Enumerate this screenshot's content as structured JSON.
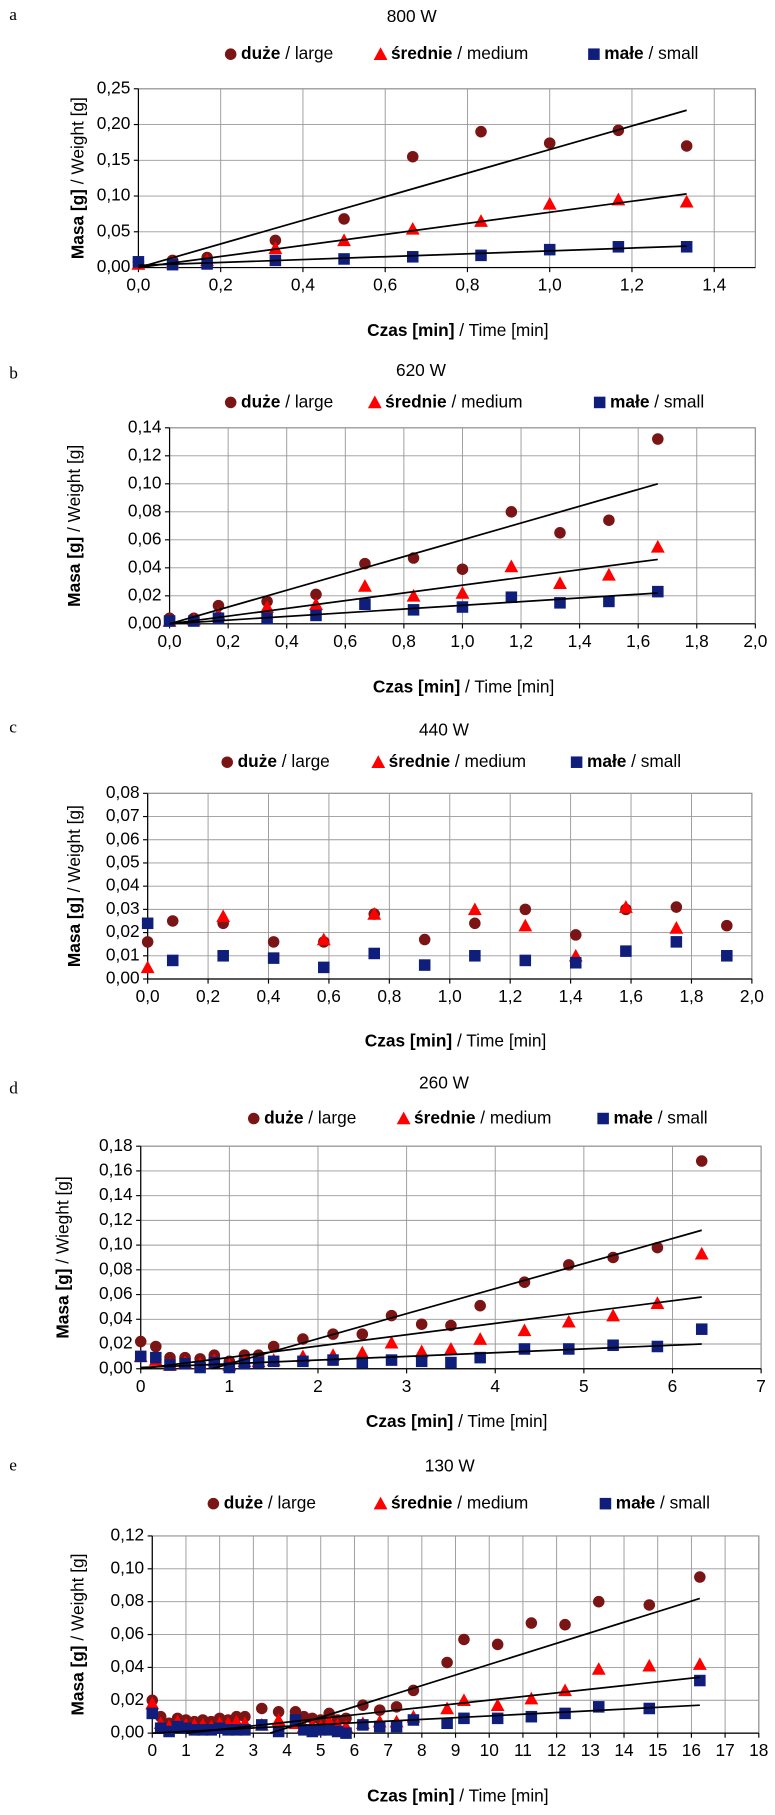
{
  "chart_data": [
    {
      "type": "scatter",
      "label": "a",
      "title": "800 W",
      "x_label": "Czas [min] / Time [min]",
      "y_label": "Masa [g] / Weight [g]",
      "xlim": [
        0,
        1.5
      ],
      "xticks": [
        {
          "value": 0,
          "label": "0,0"
        },
        {
          "value": 0.2,
          "label": "0,2"
        },
        {
          "value": 0.4,
          "label": "0,4"
        },
        {
          "value": 0.6,
          "label": "0,6"
        },
        {
          "value": 0.8,
          "label": "0,8"
        },
        {
          "value": 1.0,
          "label": "1,0"
        },
        {
          "value": 1.2,
          "label": "1,2"
        },
        {
          "value": 1.4,
          "label": "1,4"
        }
      ],
      "ylim": [
        0,
        0.25
      ],
      "yticks": [
        {
          "value": 0,
          "label": "0,00"
        },
        {
          "value": 0.05,
          "label": "0,05"
        },
        {
          "value": 0.1,
          "label": "0,10"
        },
        {
          "value": 0.15,
          "label": "0,15"
        },
        {
          "value": 0.2,
          "label": "0,20"
        },
        {
          "value": 0.25,
          "label": "0,25"
        }
      ],
      "grid": true,
      "x": [
        0,
        0.083,
        0.167,
        0.333,
        0.5,
        0.667,
        0.833,
        1.0,
        1.167,
        1.333
      ],
      "series": [
        {
          "name": "duże / large",
          "color": "#7b1515",
          "marker": "circle",
          "values": [
            0.008,
            0.01,
            0.014,
            0.038,
            0.068,
            0.155,
            0.19,
            0.174,
            0.192,
            0.17
          ],
          "trend": {
            "x": [
              0,
              1.333
            ],
            "y": [
              0,
              0.22
            ]
          }
        },
        {
          "name": "średnie / medium",
          "color": "#ff0000",
          "marker": "triangle",
          "values": [
            0.005,
            0.007,
            0.01,
            0.027,
            0.038,
            0.054,
            0.065,
            0.089,
            0.095,
            0.092
          ],
          "trend": {
            "x": [
              0,
              1.333
            ],
            "y": [
              0,
              0.103
            ]
          }
        },
        {
          "name": "małe / small",
          "color": "#0f1e7a",
          "marker": "square",
          "values": [
            0.008,
            0.004,
            0.005,
            0.01,
            0.012,
            0.015,
            0.017,
            0.025,
            0.029,
            0.029
          ],
          "trend": {
            "x": [
              0,
              1.333
            ],
            "y": [
              0.003,
              0.03
            ]
          }
        }
      ]
    },
    {
      "type": "scatter",
      "label": "b",
      "title": "620 W",
      "x_label": "Czas [min] / Time [min]",
      "y_label": "Masa [g] / Weight [g]",
      "xlim": [
        0,
        2.0
      ],
      "xticks": [
        {
          "value": 0,
          "label": "0,0"
        },
        {
          "value": 0.2,
          "label": "0,2"
        },
        {
          "value": 0.4,
          "label": "0,4"
        },
        {
          "value": 0.6,
          "label": "0,6"
        },
        {
          "value": 0.8,
          "label": "0,8"
        },
        {
          "value": 1.0,
          "label": "1,0"
        },
        {
          "value": 1.2,
          "label": "1,2"
        },
        {
          "value": 1.4,
          "label": "1,4"
        },
        {
          "value": 1.6,
          "label": "1,6"
        },
        {
          "value": 1.8,
          "label": "1,8"
        },
        {
          "value": 2.0,
          "label": "2,0"
        }
      ],
      "ylim": [
        0,
        0.14
      ],
      "yticks": [
        {
          "value": 0,
          "label": "0,00"
        },
        {
          "value": 0.02,
          "label": "0,02"
        },
        {
          "value": 0.04,
          "label": "0,04"
        },
        {
          "value": 0.06,
          "label": "0,06"
        },
        {
          "value": 0.08,
          "label": "0,08"
        },
        {
          "value": 0.1,
          "label": "0,10"
        },
        {
          "value": 0.12,
          "label": "0,12"
        },
        {
          "value": 0.14,
          "label": "0,14"
        }
      ],
      "grid": true,
      "x": [
        0,
        0.083,
        0.167,
        0.333,
        0.5,
        0.667,
        0.833,
        1.0,
        1.167,
        1.333,
        1.5,
        1.667
      ],
      "series": [
        {
          "name": "duże / large",
          "color": "#7b1515",
          "marker": "circle",
          "values": [
            0.004,
            0.004,
            0.013,
            0.016,
            0.021,
            0.043,
            0.047,
            0.039,
            0.08,
            0.065,
            0.074,
            0.132
          ],
          "trend": {
            "x": [
              0,
              1.667
            ],
            "y": [
              0,
              0.1
            ]
          }
        },
        {
          "name": "średnie / medium",
          "color": "#ff0000",
          "marker": "triangle",
          "values": [
            0.002,
            0.003,
            0.007,
            0.012,
            0.014,
            0.027,
            0.02,
            0.022,
            0.041,
            0.029,
            0.035,
            0.055
          ],
          "trend": {
            "x": [
              0,
              1.667
            ],
            "y": [
              0,
              0.046
            ]
          }
        },
        {
          "name": "małe / small",
          "color": "#0f1e7a",
          "marker": "square",
          "values": [
            0.002,
            0.002,
            0.004,
            0.004,
            0.006,
            0.014,
            0.01,
            0.012,
            0.019,
            0.015,
            0.016,
            0.023
          ],
          "trend": {
            "x": [
              0,
              1.667
            ],
            "y": [
              0,
              0.022
            ]
          }
        }
      ]
    },
    {
      "type": "scatter",
      "label": "c",
      "title": "440 W",
      "x_label": "Czas [min] / Time [min]",
      "y_label": "Masa [g] / Weight [g]",
      "xlim": [
        0,
        2.0
      ],
      "xticks": [
        {
          "value": 0,
          "label": "0,0"
        },
        {
          "value": 0.2,
          "label": "0,2"
        },
        {
          "value": 0.4,
          "label": "0,4"
        },
        {
          "value": 0.6,
          "label": "0,6"
        },
        {
          "value": 0.8,
          "label": "0,8"
        },
        {
          "value": 1.0,
          "label": "1,0"
        },
        {
          "value": 1.2,
          "label": "1,2"
        },
        {
          "value": 1.4,
          "label": "1,4"
        },
        {
          "value": 1.6,
          "label": "1,6"
        },
        {
          "value": 1.8,
          "label": "1,8"
        },
        {
          "value": 2.0,
          "label": "2,0"
        }
      ],
      "ylim": [
        0,
        0.08
      ],
      "yticks": [
        {
          "value": 0,
          "label": "0,00"
        },
        {
          "value": 0.01,
          "label": "0,01"
        },
        {
          "value": 0.02,
          "label": "0,02"
        },
        {
          "value": 0.03,
          "label": "0,03"
        },
        {
          "value": 0.04,
          "label": "0,04"
        },
        {
          "value": 0.05,
          "label": "0,05"
        },
        {
          "value": 0.06,
          "label": "0,06"
        },
        {
          "value": 0.07,
          "label": "0,07"
        },
        {
          "value": 0.08,
          "label": "0,08"
        }
      ],
      "grid": true,
      "x": [
        0,
        0.083,
        0.25,
        0.417,
        0.583,
        0.75,
        0.917,
        1.083,
        1.25,
        1.417,
        1.583,
        1.75,
        1.917
      ],
      "series": [
        {
          "name": "duże / large",
          "color": "#7b1515",
          "marker": "circle",
          "values": [
            0.016,
            0.025,
            0.024,
            0.016,
            0.016,
            0.028,
            0.017,
            0.024,
            0.03,
            0.019,
            0.03,
            0.031,
            0.023
          ]
        },
        {
          "name": "średnie / medium",
          "color": "#ff0000",
          "marker": "triangle",
          "values": [
            0.005,
            null,
            0.027,
            null,
            0.017,
            0.028,
            null,
            0.03,
            0.023,
            0.01,
            0.031,
            0.022,
            null
          ]
        },
        {
          "name": "małe / small",
          "color": "#0f1e7a",
          "marker": "square",
          "values": [
            0.024,
            0.008,
            0.01,
            0.009,
            0.005,
            0.011,
            0.006,
            0.01,
            0.008,
            0.007,
            0.012,
            0.016,
            0.01
          ]
        }
      ]
    },
    {
      "type": "scatter",
      "label": "d",
      "title": "260 W",
      "x_label": "Czas [min] / Time [min]",
      "y_label": "Masa [g] / Wieght [g]",
      "xlim": [
        0,
        7
      ],
      "xticks": [
        0,
        1,
        2,
        3,
        4,
        5,
        6,
        7
      ],
      "ylim": [
        0,
        0.18
      ],
      "yticks": [
        {
          "value": 0,
          "label": "0,00"
        },
        {
          "value": 0.02,
          "label": "0,02"
        },
        {
          "value": 0.04,
          "label": "0,04"
        },
        {
          "value": 0.06,
          "label": "0,06"
        },
        {
          "value": 0.08,
          "label": "0,08"
        },
        {
          "value": 0.1,
          "label": "0,10"
        },
        {
          "value": 0.12,
          "label": "0,12"
        },
        {
          "value": 0.14,
          "label": "0,14"
        },
        {
          "value": 0.16,
          "label": "0,16"
        },
        {
          "value": 0.18,
          "label": "0,18"
        }
      ],
      "grid": true,
      "x": [
        0,
        0.17,
        0.33,
        0.5,
        0.67,
        0.83,
        1.0,
        1.17,
        1.33,
        1.5,
        1.83,
        2.17,
        2.5,
        2.83,
        3.17,
        3.5,
        3.83,
        4.33,
        4.83,
        5.33,
        5.83,
        6.33
      ],
      "series": [
        {
          "name": "duże / large",
          "color": "#7b1515",
          "marker": "circle",
          "values": [
            0.022,
            0.018,
            0.009,
            0.009,
            0.008,
            0.011,
            0.006,
            0.011,
            0.011,
            0.018,
            0.024,
            0.028,
            0.028,
            0.043,
            0.036,
            0.035,
            0.051,
            0.07,
            0.084,
            0.09,
            0.098,
            0.168
          ],
          "trend": {
            "x": [
              0.8,
              6.33
            ],
            "y": [
              0,
              0.112
            ]
          }
        },
        {
          "name": "średnie / medium",
          "color": "#ff0000",
          "marker": "triangle",
          "values": [
            0.01,
            0.007,
            0.003,
            0.005,
            0.004,
            0.007,
            0.003,
            0.006,
            0.006,
            0.007,
            0.01,
            0.011,
            0.013,
            0.021,
            0.014,
            0.016,
            0.024,
            0.031,
            0.038,
            0.043,
            0.053,
            0.093
          ],
          "trend": {
            "x": [
              0,
              6.33
            ],
            "y": [
              0,
              0.058
            ]
          }
        },
        {
          "name": "małe / small",
          "color": "#0f1e7a",
          "marker": "square",
          "values": [
            0.01,
            0.009,
            0.003,
            0.004,
            0.001,
            0.005,
            0.001,
            0.004,
            0.005,
            0.006,
            0.006,
            0.007,
            0.005,
            0.007,
            0.006,
            0.005,
            0.009,
            0.016,
            0.016,
            0.019,
            0.018,
            0.032
          ],
          "trend": {
            "x": [
              0,
              6.33
            ],
            "y": [
              0.001,
              0.02
            ]
          }
        }
      ]
    },
    {
      "type": "scatter",
      "label": "e",
      "title": "130 W",
      "x_label": "Czas [min] / Time [min]",
      "y_label": "Masa [g] / Weight [g]",
      "xlim": [
        0,
        18
      ],
      "xticks": [
        0,
        1,
        2,
        3,
        4,
        5,
        6,
        7,
        8,
        9,
        10,
        11,
        12,
        13,
        14,
        15,
        16,
        17,
        18
      ],
      "ylim": [
        0,
        0.12
      ],
      "yticks": [
        {
          "value": 0,
          "label": "0,00"
        },
        {
          "value": 0.02,
          "label": "0,02"
        },
        {
          "value": 0.04,
          "label": "0,04"
        },
        {
          "value": 0.06,
          "label": "0,06"
        },
        {
          "value": 0.08,
          "label": "0,08"
        },
        {
          "value": 0.1,
          "label": "0,10"
        },
        {
          "value": 0.12,
          "label": "0,12"
        }
      ],
      "grid": true,
      "x": [
        0,
        0.25,
        0.5,
        0.75,
        1.0,
        1.25,
        1.5,
        1.75,
        2.0,
        2.25,
        2.5,
        2.75,
        3.25,
        3.75,
        4.25,
        4.5,
        4.75,
        5.0,
        5.25,
        5.5,
        5.75,
        6.25,
        6.75,
        7.25,
        7.75,
        8.75,
        9.25,
        10.25,
        11.25,
        12.25,
        13.25,
        14.75,
        16.25
      ],
      "series": [
        {
          "name": "duże / large",
          "color": "#7b1515",
          "marker": "circle",
          "values": [
            0.02,
            0.01,
            0.006,
            0.009,
            0.008,
            0.007,
            0.008,
            0.007,
            0.009,
            0.008,
            0.01,
            0.01,
            0.015,
            0.013,
            0.013,
            0.01,
            0.009,
            0.008,
            0.012,
            0.008,
            0.009,
            0.017,
            0.014,
            0.016,
            0.026,
            0.043,
            0.057,
            0.054,
            0.067,
            0.066,
            0.08,
            0.078,
            0.095
          ],
          "trend": {
            "x": [
              3.5,
              16.25
            ],
            "y": [
              0,
              0.082
            ]
          }
        },
        {
          "name": "średnie / medium",
          "color": "#ff0000",
          "marker": "triangle",
          "values": [
            0.018,
            0.006,
            0.004,
            0.007,
            0.005,
            0.005,
            0.005,
            0.004,
            0.006,
            0.006,
            0.007,
            0.006,
            0.005,
            0.008,
            0.006,
            0.004,
            0.005,
            0.004,
            0.007,
            0.005,
            0.004,
            0.006,
            0.007,
            0.007,
            0.01,
            0.015,
            0.02,
            0.017,
            0.021,
            0.026,
            0.039,
            0.041,
            0.042
          ],
          "trend": {
            "x": [
              1,
              16.25
            ],
            "y": [
              0,
              0.034
            ]
          }
        },
        {
          "name": "małe / small",
          "color": "#0f1e7a",
          "marker": "square",
          "values": [
            0.012,
            0.003,
            0.001,
            0.004,
            0.003,
            0.002,
            0.002,
            0.002,
            0.003,
            0.002,
            0.002,
            0.002,
            0.005,
            0.001,
            0.008,
            0.002,
            0.001,
            0.002,
            0.002,
            0.001,
            0,
            0.005,
            0.004,
            0.004,
            0.008,
            0.006,
            0.009,
            0.009,
            0.01,
            0.012,
            0.016,
            0.015,
            0.032
          ],
          "trend": {
            "x": [
              0,
              16.25
            ],
            "y": [
              0,
              0.017
            ]
          }
        }
      ]
    }
  ]
}
